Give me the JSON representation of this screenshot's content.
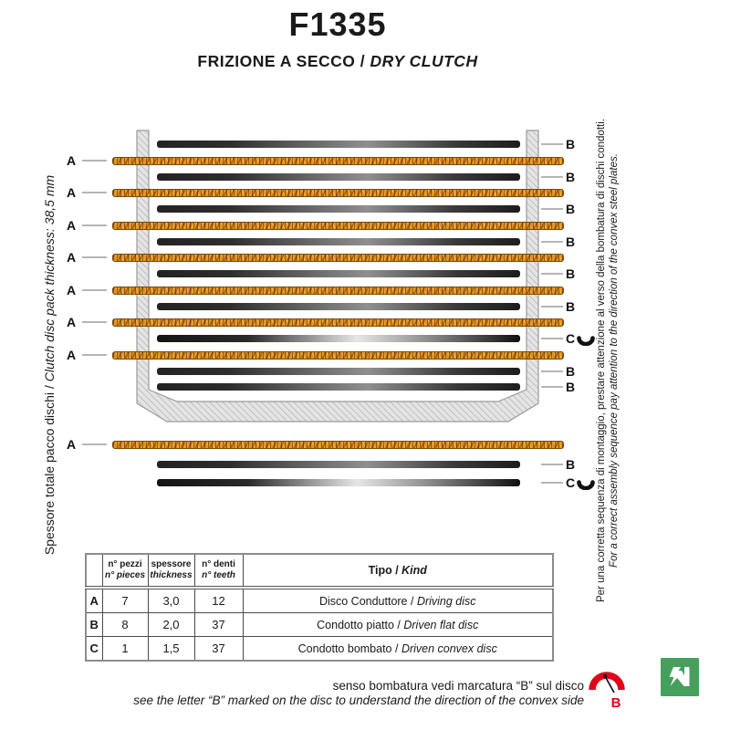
{
  "header": {
    "title": "F1335",
    "subtitle_roman": "FRIZIONE A SECCO / ",
    "subtitle_italic": "DRY CLUTCH"
  },
  "left_note": {
    "roman": "Spessore totale pacco dischi / ",
    "italic": "Clutch disc pack thickness: 38,5 mm"
  },
  "right_note": {
    "roman": "Per una corretta sequenza di montaggio, prestare attenzione al verso della bombatura di dischi condotti.",
    "italic": "For a correct assembly sequence pay attention to the direction of the convex steel plates."
  },
  "diagram": {
    "stack": [
      "B",
      "A",
      "B",
      "A",
      "B",
      "A",
      "B",
      "A",
      "B",
      "A",
      "B",
      "A",
      "C",
      "A",
      "B",
      "B"
    ],
    "legend": [
      "A",
      "B",
      "C"
    ],
    "labels": {
      "A": "A",
      "B": "B",
      "C": "C"
    }
  },
  "table": {
    "headers": [
      [
        "n° pezzi",
        "n° pieces"
      ],
      [
        "spessore",
        "thickness"
      ],
      [
        "n° denti",
        "n° teeth"
      ]
    ],
    "kind_header": {
      "roman": "Tipo / ",
      "italic": "Kind"
    },
    "rows": [
      {
        "letter": "A",
        "pieces": "7",
        "thickness": "3,0",
        "teeth": "12",
        "kind_roman": "Disco Conduttore / ",
        "kind_italic": "Driving disc"
      },
      {
        "letter": "B",
        "pieces": "8",
        "thickness": "2,0",
        "teeth": "37",
        "kind_roman": "Condotto piatto / ",
        "kind_italic": "Driven flat disc"
      },
      {
        "letter": "C",
        "pieces": "1",
        "thickness": "1,5",
        "teeth": "37",
        "kind_roman": "Condotto bombato / ",
        "kind_italic": "Driven convex disc"
      }
    ]
  },
  "footer": {
    "roman": "senso bombatura vedi marcatura “B” sul disco",
    "italic": "see the letter “B” marked on the disc to understand the direction of the convex side",
    "marker_letter": "B"
  },
  "colors": {
    "friction_orange": "#E8921C",
    "steel_dark": "#1F1F1F",
    "accent_red": "#E3001B",
    "logo_green": "#44A05C"
  }
}
